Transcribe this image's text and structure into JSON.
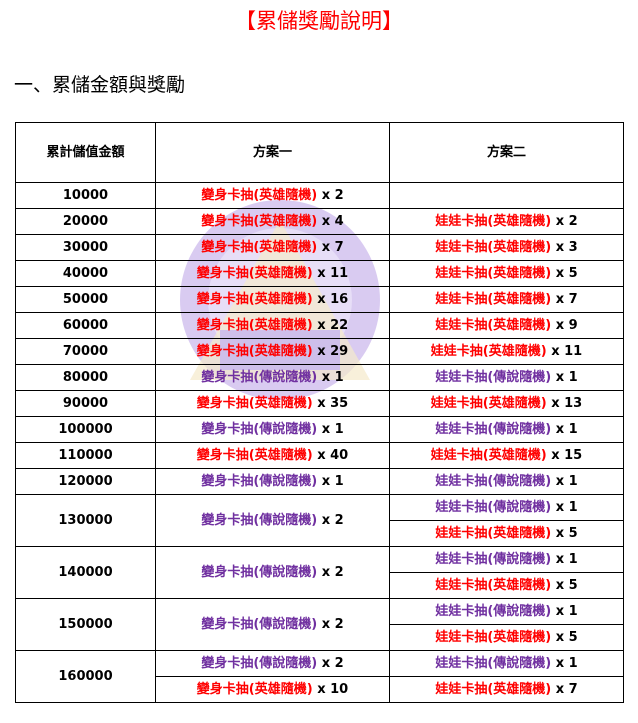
{
  "title": "【累儲獎勵說明】",
  "section_heading": "一、累儲金額與獎勵",
  "colors": {
    "red": "#ff0000",
    "purple": "#7030a0"
  },
  "table": {
    "headers": [
      "累計儲值金額",
      "方案一",
      "方案二"
    ],
    "rows": [
      {
        "amount": "10000",
        "plan1": [
          {
            "text": "變身卡抽(英雄隨機)",
            "qty": " x 2",
            "color": "red"
          }
        ],
        "plan2": []
      },
      {
        "amount": "20000",
        "plan1": [
          {
            "text": "變身卡抽(英雄隨機)",
            "qty": " x 4",
            "color": "red"
          }
        ],
        "plan2": [
          {
            "text": "娃娃卡抽(英雄隨機)",
            "qty": " x 2",
            "color": "red"
          }
        ]
      },
      {
        "amount": "30000",
        "plan1": [
          {
            "text": "變身卡抽(英雄隨機)",
            "qty": " x 7",
            "color": "red"
          }
        ],
        "plan2": [
          {
            "text": "娃娃卡抽(英雄隨機)",
            "qty": " x 3",
            "color": "red"
          }
        ]
      },
      {
        "amount": "40000",
        "plan1": [
          {
            "text": "變身卡抽(英雄隨機)",
            "qty": " x 11",
            "color": "red"
          }
        ],
        "plan2": [
          {
            "text": "娃娃卡抽(英雄隨機)",
            "qty": " x 5",
            "color": "red"
          }
        ]
      },
      {
        "amount": "50000",
        "plan1": [
          {
            "text": "變身卡抽(英雄隨機)",
            "qty": " x 16",
            "color": "red"
          }
        ],
        "plan2": [
          {
            "text": "娃娃卡抽(英雄隨機)",
            "qty": " x 7",
            "color": "red"
          }
        ]
      },
      {
        "amount": "60000",
        "plan1": [
          {
            "text": "變身卡抽(英雄隨機)",
            "qty": " x 22",
            "color": "red"
          }
        ],
        "plan2": [
          {
            "text": "娃娃卡抽(英雄隨機)",
            "qty": " x 9",
            "color": "red"
          }
        ]
      },
      {
        "amount": "70000",
        "plan1": [
          {
            "text": "變身卡抽(英雄隨機)",
            "qty": " x 29",
            "color": "red"
          }
        ],
        "plan2": [
          {
            "text": "娃娃卡抽(英雄隨機)",
            "qty": " x 11",
            "color": "red"
          }
        ]
      },
      {
        "amount": "80000",
        "plan1": [
          {
            "text": "變身卡抽(傳說隨機)",
            "qty": " x 1",
            "color": "purple"
          }
        ],
        "plan2": [
          {
            "text": "娃娃卡抽(傳說隨機)",
            "qty": " x 1",
            "color": "purple"
          }
        ]
      },
      {
        "amount": "90000",
        "plan1": [
          {
            "text": "變身卡抽(英雄隨機)",
            "qty": " x 35",
            "color": "red"
          }
        ],
        "plan2": [
          {
            "text": "娃娃卡抽(英雄隨機)",
            "qty": " x 13",
            "color": "red"
          }
        ]
      },
      {
        "amount": "100000",
        "plan1": [
          {
            "text": "變身卡抽(傳說隨機)",
            "qty": " x 1",
            "color": "purple"
          }
        ],
        "plan2": [
          {
            "text": "娃娃卡抽(傳說隨機)",
            "qty": " x 1",
            "color": "purple"
          }
        ]
      },
      {
        "amount": "110000",
        "plan1": [
          {
            "text": "變身卡抽(英雄隨機)",
            "qty": " x 40",
            "color": "red"
          }
        ],
        "plan2": [
          {
            "text": "娃娃卡抽(英雄隨機)",
            "qty": " x 15",
            "color": "red"
          }
        ]
      },
      {
        "amount": "120000",
        "plan1": [
          {
            "text": "變身卡抽(傳說隨機)",
            "qty": " x 1",
            "color": "purple"
          }
        ],
        "plan2": [
          {
            "text": "娃娃卡抽(傳說隨機)",
            "qty": " x 1",
            "color": "purple"
          }
        ]
      },
      {
        "amount": "130000",
        "plan1": [
          {
            "text": "變身卡抽(傳說隨機)",
            "qty": " x 2",
            "color": "purple"
          }
        ],
        "plan2": [
          {
            "text": "娃娃卡抽(傳說隨機)",
            "qty": " x 1",
            "color": "purple"
          },
          {
            "text": "娃娃卡抽(英雄隨機)",
            "qty": " x 5",
            "color": "red"
          }
        ]
      },
      {
        "amount": "140000",
        "plan1": [
          {
            "text": "變身卡抽(傳說隨機)",
            "qty": " x 2",
            "color": "purple"
          }
        ],
        "plan2": [
          {
            "text": "娃娃卡抽(傳說隨機)",
            "qty": " x 1",
            "color": "purple"
          },
          {
            "text": "娃娃卡抽(英雄隨機)",
            "qty": " x 5",
            "color": "red"
          }
        ]
      },
      {
        "amount": "150000",
        "plan1": [
          {
            "text": "變身卡抽(傳說隨機)",
            "qty": " x 2",
            "color": "purple"
          }
        ],
        "plan2": [
          {
            "text": "娃娃卡抽(傳說隨機)",
            "qty": " x 1",
            "color": "purple"
          },
          {
            "text": "娃娃卡抽(英雄隨機)",
            "qty": " x 5",
            "color": "red"
          }
        ]
      },
      {
        "amount": "160000",
        "plan1": [
          {
            "text": "變身卡抽(傳說隨機)",
            "qty": " x 2",
            "color": "purple"
          },
          {
            "text": "變身卡抽(英雄隨機)",
            "qty": " x 10",
            "color": "red"
          }
        ],
        "plan2": [
          {
            "text": "娃娃卡抽(傳說隨機)",
            "qty": " x 1",
            "color": "purple"
          },
          {
            "text": "娃娃卡抽(英雄隨機)",
            "qty": " x 7",
            "color": "red"
          }
        ]
      }
    ]
  }
}
